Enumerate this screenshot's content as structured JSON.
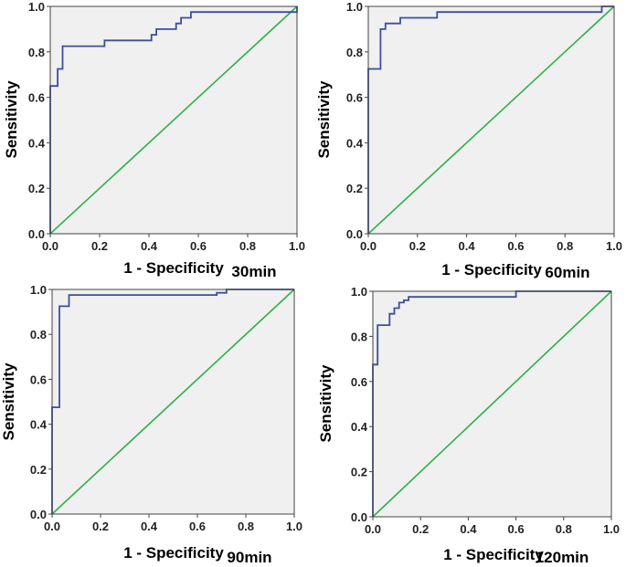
{
  "chart_data": [
    {
      "type": "line",
      "title": "",
      "panel_label": "30min",
      "xlabel": "1 - Specificity",
      "ylabel": "Sensitivity",
      "xlim": [
        0,
        1
      ],
      "ylim": [
        0,
        1
      ],
      "xticks": [
        "0.0",
        "0.2",
        "0.4",
        "0.6",
        "0.8",
        "1.0"
      ],
      "yticks": [
        "0.0",
        "0.2",
        "0.4",
        "0.6",
        "0.8",
        "1.0"
      ],
      "grid": false,
      "colors": {
        "roc": "#3b4f9a",
        "reference": "#2bb24c",
        "plot_bg": "#f0f0f0"
      },
      "series": [
        {
          "name": "ROC",
          "x": [
            0,
            0,
            0.03,
            0.03,
            0.05,
            0.05,
            0.22,
            0.22,
            0.41,
            0.41,
            0.43,
            0.43,
            0.51,
            0.51,
            0.53,
            0.53,
            0.57,
            0.57,
            1.0,
            1.0
          ],
          "y": [
            0,
            0.65,
            0.65,
            0.725,
            0.725,
            0.825,
            0.825,
            0.85,
            0.85,
            0.875,
            0.875,
            0.9,
            0.9,
            0.925,
            0.925,
            0.95,
            0.95,
            0.975,
            0.975,
            1.0
          ]
        },
        {
          "name": "Reference",
          "x": [
            0,
            1
          ],
          "y": [
            0,
            1
          ]
        }
      ]
    },
    {
      "type": "line",
      "title": "",
      "panel_label": "60min",
      "xlabel": "1 - Specificity",
      "ylabel": "Sensitivity",
      "xlim": [
        0,
        1
      ],
      "ylim": [
        0,
        1
      ],
      "xticks": [
        "0.0",
        "0.2",
        "0.4",
        "0.6",
        "0.8",
        "1.0"
      ],
      "yticks": [
        "0.0",
        "0.2",
        "0.4",
        "0.6",
        "0.8",
        "1.0"
      ],
      "grid": false,
      "colors": {
        "roc": "#3b4f9a",
        "reference": "#2bb24c",
        "plot_bg": "#f0f0f0"
      },
      "series": [
        {
          "name": "ROC",
          "x": [
            0,
            0,
            0.05,
            0.05,
            0.07,
            0.07,
            0.13,
            0.13,
            0.28,
            0.28,
            0.95,
            0.95,
            1.0
          ],
          "y": [
            0,
            0.725,
            0.725,
            0.9,
            0.9,
            0.925,
            0.925,
            0.95,
            0.95,
            0.975,
            0.975,
            1.0,
            1.0
          ]
        },
        {
          "name": "Reference",
          "x": [
            0,
            1
          ],
          "y": [
            0,
            1
          ]
        }
      ]
    },
    {
      "type": "line",
      "title": "",
      "panel_label": "90min",
      "xlabel": "1 - Specificity",
      "ylabel": "Sensitivity",
      "xlim": [
        0,
        1
      ],
      "ylim": [
        0,
        1
      ],
      "xticks": [
        "0.0",
        "0.2",
        "0.4",
        "0.6",
        "0.8",
        "1.0"
      ],
      "yticks": [
        "0.0",
        "0.2",
        "0.4",
        "0.6",
        "0.8",
        "1.0"
      ],
      "grid": false,
      "colors": {
        "roc": "#3b4f9a",
        "reference": "#2bb24c",
        "plot_bg": "#f0f0f0"
      },
      "series": [
        {
          "name": "ROC",
          "x": [
            0,
            0,
            0.03,
            0.03,
            0.07,
            0.07,
            0.68,
            0.68,
            0.72,
            0.72,
            1.0
          ],
          "y": [
            0,
            0.475,
            0.475,
            0.925,
            0.925,
            0.975,
            0.975,
            0.985,
            0.985,
            1.0,
            1.0
          ]
        },
        {
          "name": "Reference",
          "x": [
            0,
            1
          ],
          "y": [
            0,
            1
          ]
        }
      ]
    },
    {
      "type": "line",
      "title": "",
      "panel_label": "120min",
      "xlabel": "1 - Specificity",
      "ylabel": "Sensitivity",
      "xlim": [
        0,
        1
      ],
      "ylim": [
        0,
        1
      ],
      "xticks": [
        "0.0",
        "0.2",
        "0.4",
        "0.6",
        "0.8",
        "1.0"
      ],
      "yticks": [
        "0.0",
        "0.2",
        "0.4",
        "0.6",
        "0.8",
        "1.0"
      ],
      "grid": false,
      "colors": {
        "roc": "#3b4f9a",
        "reference": "#2bb24c",
        "plot_bg": "#f0f0f0"
      },
      "series": [
        {
          "name": "ROC",
          "x": [
            0,
            0,
            0.02,
            0.02,
            0.07,
            0.07,
            0.09,
            0.09,
            0.11,
            0.11,
            0.13,
            0.13,
            0.15,
            0.15,
            0.6,
            0.6,
            1.0
          ],
          "y": [
            0,
            0.675,
            0.675,
            0.85,
            0.85,
            0.9,
            0.9,
            0.925,
            0.925,
            0.95,
            0.95,
            0.96,
            0.96,
            0.975,
            0.975,
            1.0,
            1.0
          ]
        },
        {
          "name": "Reference",
          "x": [
            0,
            1
          ],
          "y": [
            0,
            1
          ]
        }
      ]
    }
  ]
}
